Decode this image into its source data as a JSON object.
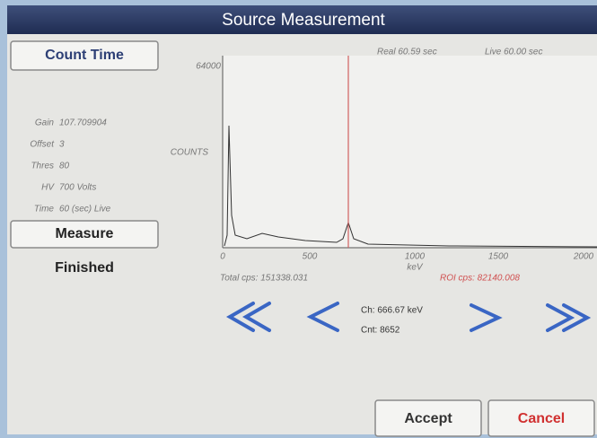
{
  "header": {
    "title": "Source Measurement"
  },
  "left_panel": {
    "count_time_button": "Count Time",
    "settings": [
      {
        "label": "Gain",
        "value": "107.709904"
      },
      {
        "label": "Offset",
        "value": "3"
      },
      {
        "label": "Thres",
        "value": "80"
      },
      {
        "label": "HV",
        "value": "700 Volts"
      },
      {
        "label": "Time",
        "value": "60 (sec) Live"
      }
    ],
    "measure_button": "Measure",
    "status": "Finished"
  },
  "spectrum": {
    "real_time": "Real 60.59 sec",
    "live_time": "Live 60.00 sec",
    "y_max_label": "64000",
    "y_axis_label": "COUNTS",
    "x_labels": [
      "0",
      "500",
      "1000",
      "1500",
      "2000"
    ],
    "x_unit": "keV",
    "total_cps": "Total cps: 151338.031",
    "roi_cps": "ROI cps: 82140.008"
  },
  "cursor": {
    "channel": "Ch: 666.67 keV",
    "count": "Cnt: 8652"
  },
  "buttons": {
    "accept": "Accept",
    "cancel": "Cancel"
  }
}
